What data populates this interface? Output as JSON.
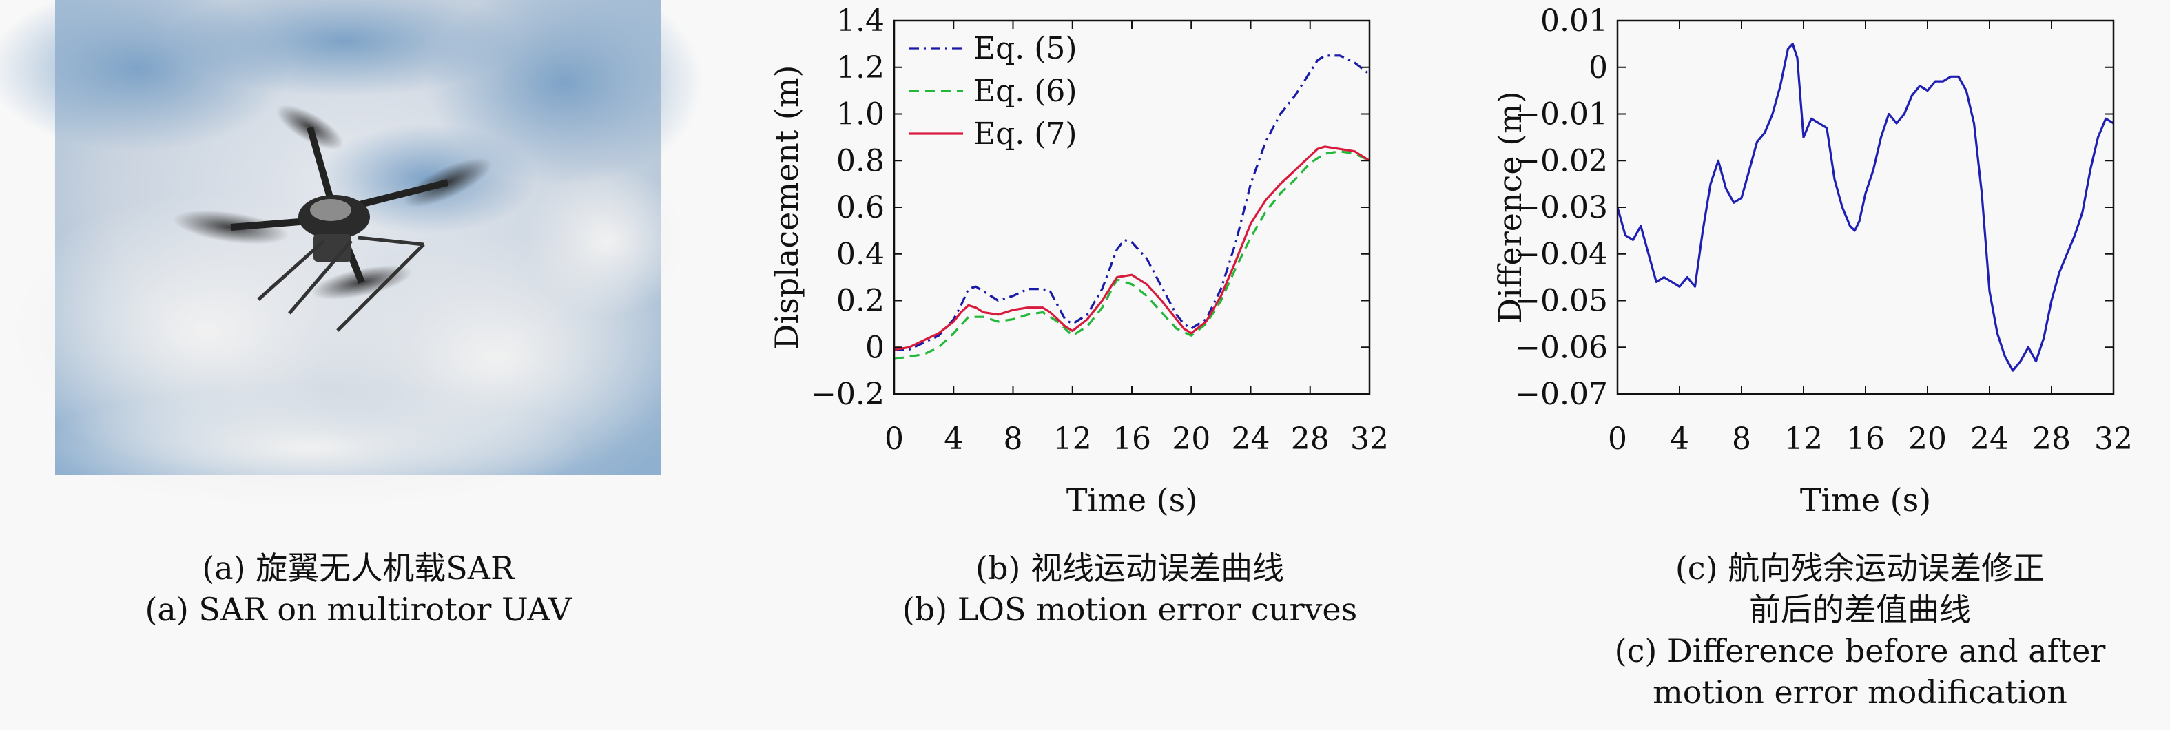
{
  "panels": {
    "a": {
      "image_alt": "quadrotor UAV with SAR flying against a blue sky with clouds",
      "caption_cn": "(a) 旋翼无人机载SAR",
      "caption_en": "(a) SAR on multirotor UAV"
    },
    "b": {
      "caption_cn": "(b) 视线运动误差曲线",
      "caption_en": "(b) LOS motion error curves"
    },
    "c": {
      "caption_cn_1": "(c) 航向残余运动误差修正",
      "caption_cn_2": "前后的差值曲线",
      "caption_en_1": "(c) Difference before and after",
      "caption_en_2": "motion error modification"
    }
  },
  "colors": {
    "eq5": "#1a1aa8",
    "eq6": "#22b83a",
    "eq7": "#d81b3c",
    "diff": "#1f1fb4"
  },
  "chart_data": [
    {
      "id": "b",
      "type": "line",
      "xlabel": "Time (s)",
      "ylabel": "Displacement (m)",
      "xlim": [
        0,
        32
      ],
      "ylim": [
        -0.2,
        1.4
      ],
      "xticks": [
        0,
        4,
        8,
        12,
        16,
        20,
        24,
        28,
        32
      ],
      "xtick_labels": [
        "0",
        "4",
        "8",
        "12",
        "16",
        "20",
        "24",
        "28",
        "32"
      ],
      "yticks": [
        -0.2,
        0,
        0.2,
        0.4,
        0.6,
        0.8,
        1.0,
        1.2,
        1.4
      ],
      "ytick_labels": [
        "−0.2",
        "0",
        "0.2",
        "0.4",
        "0.6",
        "0.8",
        "1.0",
        "1.2",
        "1.4"
      ],
      "legend": "top-left",
      "grid": false,
      "series": [
        {
          "name": "Eq. (5)",
          "style": "dashdot",
          "color_key": "eq5",
          "x": [
            0,
            1,
            2,
            3,
            4,
            4.5,
            5,
            5.5,
            6,
            7,
            8,
            9,
            10,
            10.5,
            11,
            11.5,
            12,
            13,
            14,
            15,
            15.5,
            16,
            17,
            18,
            19,
            19.5,
            20,
            21,
            22,
            23,
            24,
            25,
            26,
            27,
            28,
            28.5,
            29,
            30,
            31,
            32
          ],
          "y": [
            -0.01,
            -0.01,
            0.02,
            0.05,
            0.12,
            0.18,
            0.25,
            0.26,
            0.24,
            0.2,
            0.22,
            0.25,
            0.25,
            0.24,
            0.18,
            0.12,
            0.1,
            0.14,
            0.25,
            0.42,
            0.46,
            0.45,
            0.38,
            0.26,
            0.14,
            0.1,
            0.08,
            0.12,
            0.25,
            0.45,
            0.7,
            0.88,
            1.0,
            1.08,
            1.18,
            1.23,
            1.25,
            1.25,
            1.22,
            1.17
          ]
        },
        {
          "name": "Eq. (6)",
          "style": "dashed",
          "color_key": "eq6",
          "x": [
            0,
            1,
            2,
            3,
            4,
            5,
            6,
            7,
            8,
            9,
            10,
            11,
            12,
            13,
            14,
            15,
            16,
            17,
            18,
            19,
            20,
            21,
            22,
            23,
            24,
            25,
            26,
            27,
            28,
            29,
            30,
            31,
            32
          ],
          "y": [
            -0.05,
            -0.04,
            -0.03,
            0.0,
            0.06,
            0.13,
            0.13,
            0.11,
            0.12,
            0.14,
            0.15,
            0.11,
            0.05,
            0.09,
            0.17,
            0.29,
            0.27,
            0.22,
            0.15,
            0.08,
            0.05,
            0.1,
            0.2,
            0.34,
            0.47,
            0.58,
            0.66,
            0.72,
            0.79,
            0.83,
            0.84,
            0.83,
            0.8
          ]
        },
        {
          "name": "Eq. (7)",
          "style": "solid",
          "color_key": "eq7",
          "x": [
            0,
            1,
            2,
            3,
            4,
            4.5,
            5,
            5.5,
            6,
            7,
            8,
            9,
            10,
            10.5,
            11,
            11.5,
            12,
            13,
            14,
            15,
            16,
            17,
            18,
            19,
            19.5,
            20,
            21,
            22,
            23,
            24,
            25,
            26,
            27,
            28,
            28.5,
            29,
            30,
            31,
            32
          ],
          "y": [
            -0.01,
            0.0,
            0.03,
            0.06,
            0.11,
            0.15,
            0.18,
            0.17,
            0.15,
            0.14,
            0.16,
            0.17,
            0.17,
            0.15,
            0.12,
            0.09,
            0.07,
            0.12,
            0.2,
            0.3,
            0.31,
            0.27,
            0.2,
            0.12,
            0.08,
            0.06,
            0.11,
            0.22,
            0.37,
            0.53,
            0.63,
            0.7,
            0.76,
            0.82,
            0.85,
            0.86,
            0.85,
            0.84,
            0.8
          ]
        }
      ]
    },
    {
      "id": "c",
      "type": "line",
      "xlabel": "Time (s)",
      "ylabel": "Difference (m)",
      "xlim": [
        0,
        32
      ],
      "ylim": [
        -0.07,
        0.01
      ],
      "xticks": [
        0,
        4,
        8,
        12,
        16,
        20,
        24,
        28,
        32
      ],
      "xtick_labels": [
        "0",
        "4",
        "8",
        "12",
        "16",
        "20",
        "24",
        "28",
        "32"
      ],
      "yticks": [
        -0.07,
        -0.06,
        -0.05,
        -0.04,
        -0.03,
        -0.02,
        -0.01,
        0,
        0.01
      ],
      "ytick_labels": [
        "−0.07",
        "−0.06",
        "−0.05",
        "−0.04",
        "−0.03",
        "−0.02",
        "−0.01",
        "0",
        "0.01"
      ],
      "grid": false,
      "series": [
        {
          "color_key": "diff",
          "x": [
            0,
            0.5,
            1,
            1.5,
            2,
            2.5,
            3,
            3.5,
            4,
            4.5,
            5,
            5.5,
            6,
            6.5,
            7,
            7.5,
            8,
            8.5,
            9,
            9.5,
            10,
            10.5,
            11,
            11.3,
            11.6,
            12,
            12.5,
            13,
            13.5,
            14,
            14.5,
            15,
            15.3,
            15.6,
            16,
            16.5,
            17,
            17.5,
            18,
            18.5,
            19,
            19.5,
            20,
            20.5,
            21,
            21.5,
            22,
            22.5,
            23,
            23.5,
            24,
            24.5,
            25,
            25.5,
            26,
            26.5,
            27,
            27.5,
            28,
            28.5,
            29,
            29.5,
            30,
            30.5,
            31,
            31.5,
            32
          ],
          "y": [
            -0.03,
            -0.036,
            -0.037,
            -0.034,
            -0.04,
            -0.046,
            -0.045,
            -0.046,
            -0.047,
            -0.045,
            -0.047,
            -0.035,
            -0.025,
            -0.02,
            -0.026,
            -0.029,
            -0.028,
            -0.022,
            -0.016,
            -0.014,
            -0.01,
            -0.004,
            0.004,
            0.005,
            0.002,
            -0.015,
            -0.011,
            -0.012,
            -0.013,
            -0.024,
            -0.03,
            -0.034,
            -0.035,
            -0.033,
            -0.027,
            -0.022,
            -0.015,
            -0.01,
            -0.012,
            -0.01,
            -0.006,
            -0.004,
            -0.005,
            -0.003,
            -0.003,
            -0.002,
            -0.002,
            -0.005,
            -0.012,
            -0.027,
            -0.048,
            -0.057,
            -0.062,
            -0.065,
            -0.063,
            -0.06,
            -0.063,
            -0.058,
            -0.05,
            -0.044,
            -0.04,
            -0.036,
            -0.031,
            -0.022,
            -0.015,
            -0.011,
            -0.012
          ]
        }
      ]
    }
  ]
}
